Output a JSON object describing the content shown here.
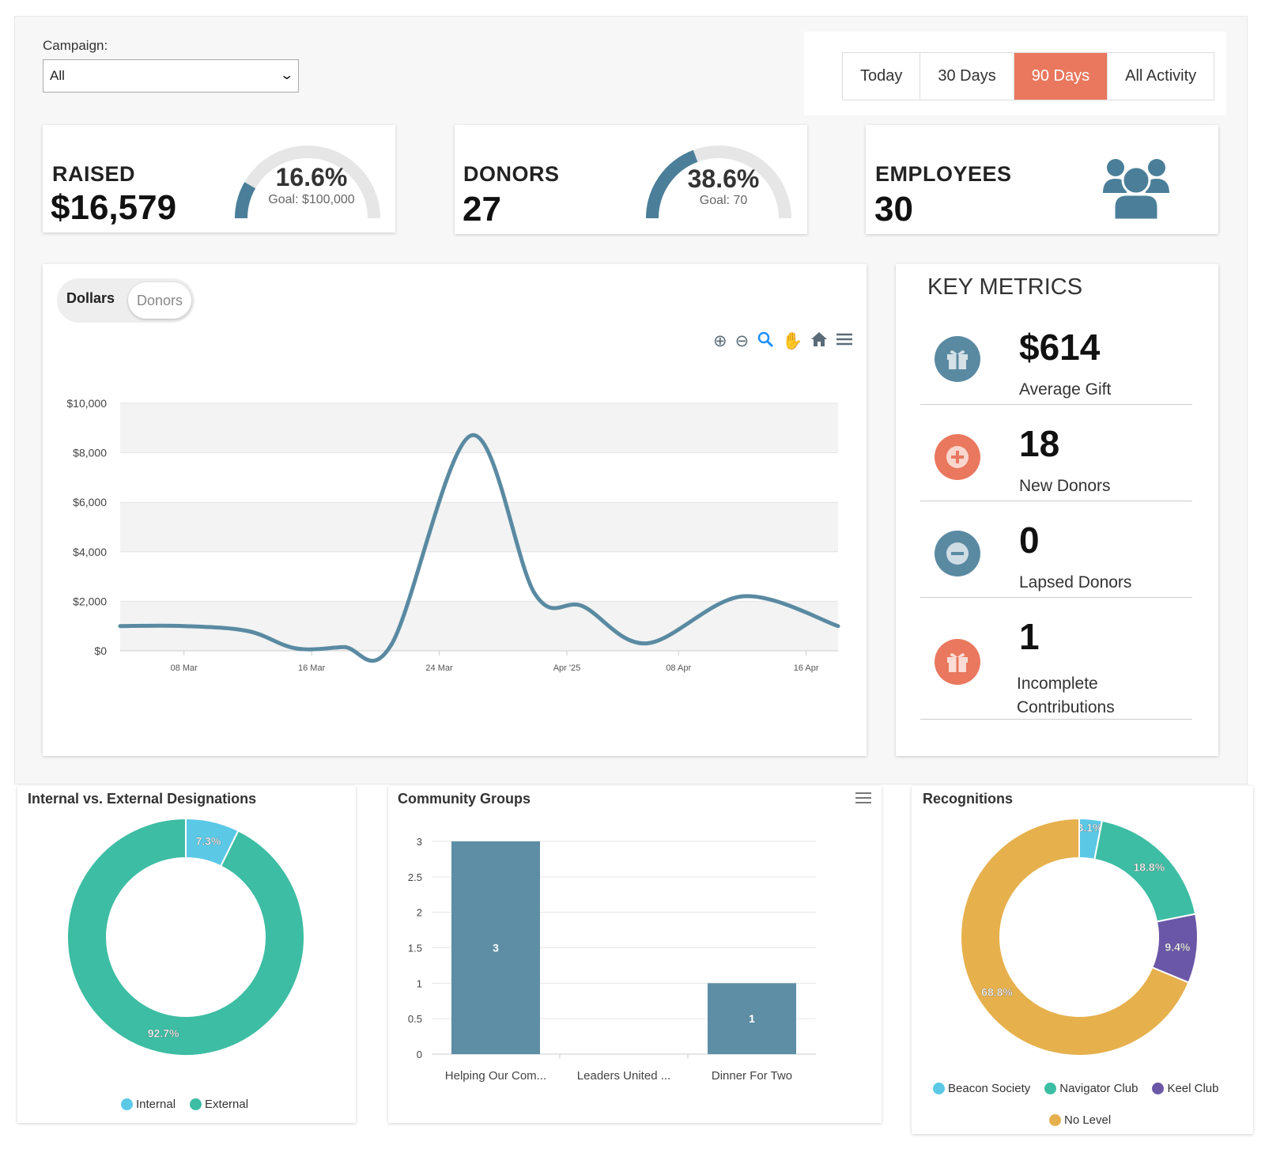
{
  "campaign": {
    "label": "Campaign:",
    "value": "All"
  },
  "range": {
    "options": [
      "Today",
      "30 Days",
      "90 Days",
      "All Activity"
    ],
    "active": "90 Days"
  },
  "stats": {
    "raised": {
      "title": "RAISED",
      "value": "$16,579",
      "pct": "16.6%",
      "goal": "Goal: $100,000",
      "fraction": 0.166
    },
    "donors": {
      "title": "DONORS",
      "value": "27",
      "pct": "38.6%",
      "goal": "Goal: 70",
      "fraction": 0.386
    },
    "employees": {
      "title": "EMPLOYEES",
      "value": "30",
      "icon": "users-icon"
    }
  },
  "trend": {
    "toggle": [
      "Dollars",
      "Donors"
    ],
    "active": "Dollars",
    "tools": [
      "zoom-in-icon",
      "zoom-out-icon",
      "zoom-select-icon",
      "pan-icon",
      "reset-home-icon",
      "menu-icon"
    ]
  },
  "key_metrics": {
    "title": "KEY METRICS",
    "items": [
      {
        "value": "$614",
        "label": "Average Gift",
        "icon": "gift-icon",
        "color": "#5a8aa2"
      },
      {
        "value": "18",
        "label": "New Donors",
        "icon": "plus-circle-icon",
        "color": "#e9785e"
      },
      {
        "value": "0",
        "label": "Lapsed Donors",
        "icon": "minus-circle-icon",
        "color": "#5a8aa2"
      },
      {
        "value": "1",
        "label": "Incomplete Contributions",
        "icon": "gift-icon",
        "color": "#e9785e"
      }
    ]
  },
  "colors": {
    "accent": "#e9785e",
    "line": "#5a8aa2",
    "teal": "#3dbda3",
    "light_blue": "#5bc8e6",
    "purple": "#6b57a8",
    "gold": "#e6b04d",
    "bar": "#5e8ea5"
  },
  "chart_data": [
    {
      "type": "line",
      "title": "",
      "ylabel": "",
      "xlabel": "",
      "x_ticks": [
        "08 Mar",
        "16 Mar",
        "24 Mar",
        "Apr '25",
        "08 Apr",
        "16 Apr"
      ],
      "y_ticks": [
        "$10,000",
        "$8,000",
        "$6,000",
        "$4,000",
        "$2,000",
        "$0"
      ],
      "ylim": [
        0,
        10000
      ],
      "series": [
        {
          "values": [
            {
              "x": "2025-03-04",
              "y": 1000
            },
            {
              "x": "2025-03-08",
              "y": 1000
            },
            {
              "x": "2025-03-12",
              "y": 800
            },
            {
              "x": "2025-03-15",
              "y": 100
            },
            {
              "x": "2025-03-18",
              "y": 150
            },
            {
              "x": "2025-03-21",
              "y": 250
            },
            {
              "x": "2025-03-26",
              "y": 8700
            },
            {
              "x": "2025-03-30",
              "y": 2300
            },
            {
              "x": "2025-04-02",
              "y": 1800
            },
            {
              "x": "2025-04-06",
              "y": 300
            },
            {
              "x": "2025-04-12",
              "y": 2200
            },
            {
              "x": "2025-04-18",
              "y": 1000
            }
          ]
        }
      ]
    },
    {
      "type": "pie",
      "title": "Internal vs. External Designations",
      "legend": [
        "Internal",
        "External"
      ],
      "values": [
        7.3,
        92.7
      ],
      "labels": [
        "7.3%",
        "92.7%"
      ],
      "colors": [
        "#5bc8e6",
        "#3dbda3"
      ]
    },
    {
      "type": "bar",
      "title": "Community Groups",
      "categories": [
        "Helping Our Com...",
        "Leaders United ...",
        "Dinner For Two"
      ],
      "values": [
        3,
        0,
        1
      ],
      "data_labels": [
        "3",
        "",
        "1"
      ],
      "ylim": [
        0,
        3
      ],
      "y_ticks": [
        "0",
        "0.5",
        "1",
        "1.5",
        "2",
        "2.5",
        "3"
      ]
    },
    {
      "type": "pie",
      "title": "Recognitions",
      "legend": [
        "Beacon Society",
        "Navigator Club",
        "Keel Club",
        "No Level"
      ],
      "values": [
        3.1,
        18.8,
        9.4,
        68.8
      ],
      "labels": [
        "3.1%",
        "18.8%",
        "9.4%",
        "68.8%"
      ],
      "colors": [
        "#5bc8e6",
        "#3dbda3",
        "#6b57a8",
        "#e6b04d"
      ]
    }
  ]
}
